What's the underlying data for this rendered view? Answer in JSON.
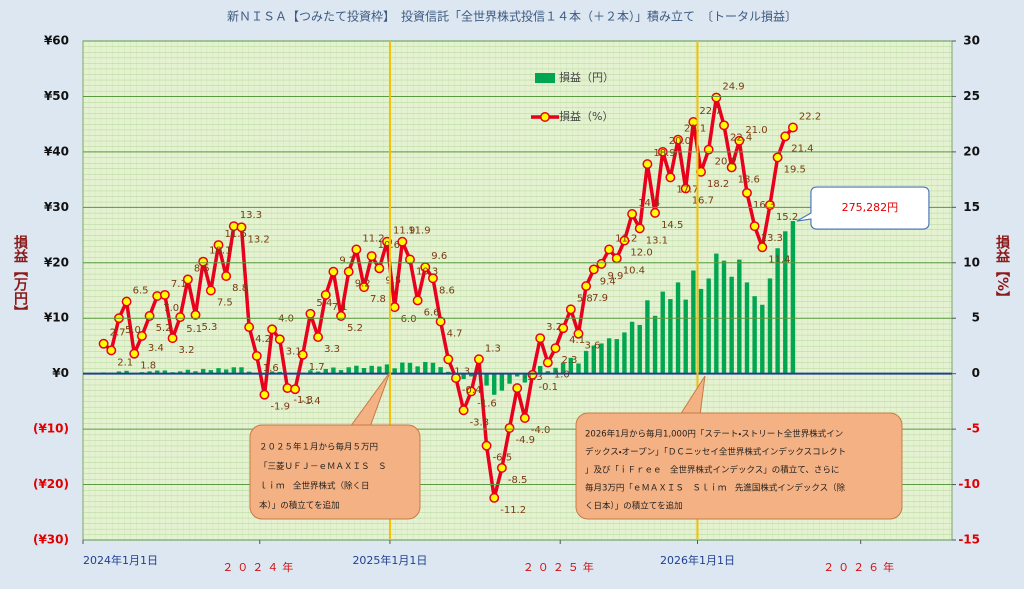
{
  "chart_data": {
    "type": "combo",
    "title": "新ＮＩＳＡ【つみたて投資枠】　投資信託「全世界株式投信１４本（＋２本）」積み立て　〔トータル損益〕",
    "y_label": "損益【万円】",
    "y2_label": "損益【%】",
    "grid": true,
    "x": [
      3.5,
      4.8,
      6.1,
      7.4,
      8.7,
      10.0,
      11.3,
      12.6,
      13.9,
      15.2,
      16.5,
      17.8,
      19.1,
      20.4,
      21.7,
      23.0,
      24.3,
      25.6,
      26.9,
      28.2,
      29.5,
      30.8,
      32.1,
      33.4,
      34.7,
      36.0,
      37.3,
      38.6,
      39.9,
      41.2,
      42.5,
      43.8,
      45.1,
      46.4,
      47.7,
      49.0,
      50.3,
      51.6,
      52.9,
      54.2,
      55.5,
      56.8,
      58.1,
      59.4,
      60.7,
      62.0,
      63.3,
      64.6,
      65.9,
      67.2,
      68.5,
      69.8,
      71.1,
      72.4,
      73.7,
      75.0,
      76.3,
      77.6,
      78.9,
      80.2,
      81.5,
      82.8,
      84.1,
      85.4,
      86.7,
      88.0,
      89.3,
      90.6,
      91.9,
      93.2,
      94.5,
      95.8,
      97.1,
      98.4,
      99.7,
      101.0,
      102.3,
      103.6,
      104.9,
      106.2,
      107.5,
      108.8,
      110.1,
      111.4,
      112.7,
      114.0,
      115.3,
      116.6,
      117.9,
      119.2,
      120.5
    ],
    "xlim": [
      0,
      147.5
    ],
    "xticks": [
      {
        "value": 0,
        "label": "2024年1月1日"
      },
      {
        "value": 30,
        "label": "２０２４年"
      },
      {
        "value": 52.1,
        "label": "2025年1月1日"
      },
      {
        "value": 81,
        "label": "２０２５年"
      },
      {
        "value": 104.3,
        "label": "2026年1月1日"
      },
      {
        "value": 132,
        "label": "２０２６年"
      }
    ],
    "vlines": [
      52.1,
      104.3
    ],
    "vline_color": "#f5c000",
    "ylim": [
      -30,
      60
    ],
    "yticks": [
      {
        "value": 60,
        "label": "¥60"
      },
      {
        "value": 50,
        "label": "¥50"
      },
      {
        "value": 40,
        "label": "¥40"
      },
      {
        "value": 30,
        "label": "¥30"
      },
      {
        "value": 20,
        "label": "¥20"
      },
      {
        "value": 10,
        "label": "¥10"
      },
      {
        "value": 0,
        "label": "¥0"
      },
      {
        "value": -10,
        "label": "(¥10)"
      },
      {
        "value": -20,
        "label": "(¥20)"
      },
      {
        "value": -30,
        "label": "(¥30)"
      }
    ],
    "y2lim": [
      -15,
      30
    ],
    "y2ticks": [
      30,
      25,
      20,
      15,
      10,
      5,
      0,
      -5,
      -10,
      -15
    ],
    "series": [
      {
        "name": "損益（円）",
        "type": "bar",
        "color": "#00a651",
        "values": [
          0.22,
          0.17,
          0.4,
          0.52,
          0.14,
          0.27,
          0.42,
          0.57,
          0.58,
          0.26,
          0.42,
          0.71,
          0.44,
          0.85,
          0.64,
          0.99,
          0.76,
          1.15,
          1.15,
          0.37,
          0.14,
          -0.19,
          0.41,
          0.32,
          -0.14,
          -0.15,
          0.19,
          0.61,
          0.38,
          0.84,
          1.11,
          0.64,
          1.15,
          1.43,
          1.02,
          1.41,
          1.29,
          1.67,
          0.96,
          2.02,
          1.96,
          1.32,
          2.11,
          1.98,
          1.18,
          0.34,
          -0.11,
          -0.96,
          -0.5,
          0.42,
          -2.15,
          -3.81,
          -3.06,
          -1.81,
          -0.51,
          -1.6,
          -0.04,
          1.38,
          0.45,
          1.06,
          1.97,
          2.84,
          1.84,
          4.11,
          5.08,
          5.45,
          6.38,
          6.24,
          7.44,
          9.36,
          8.78,
          13.23,
          10.44,
          14.8,
          13.45,
          16.46,
          13.36,
          18.61,
          15.29,
          17.17,
          21.66,
          20.38,
          17.48,
          20.58,
          16.46,
          13.97,
          12.43,
          17.18,
          22.62,
          25.68,
          27.5282
        ],
        "value_labels": [
          null,
          null,
          null,
          null,
          null,
          null,
          null,
          null,
          null,
          null,
          null,
          null,
          null,
          null,
          null,
          null,
          null,
          null,
          null,
          null,
          null,
          null,
          null,
          null,
          null,
          null,
          null,
          null,
          null,
          null,
          null,
          null,
          null,
          null,
          null,
          null,
          null,
          null,
          null,
          null,
          null,
          null,
          null,
          null,
          null,
          null,
          null,
          null,
          null,
          null,
          null,
          null,
          null,
          null,
          null,
          null,
          null,
          null,
          null,
          null,
          null,
          null,
          null,
          null,
          null,
          null,
          null,
          null,
          null,
          null,
          null,
          null,
          null,
          null,
          null,
          null,
          null,
          null,
          null,
          null,
          null,
          null,
          null,
          null,
          null,
          null,
          null,
          null,
          null,
          null,
          "275,282円"
        ]
      },
      {
        "name": "損益（%）",
        "type": "line",
        "axis": "y2",
        "color": "#e8001c",
        "marker_color": "#ffff00",
        "values": [
          2.7,
          2.1,
          5.0,
          6.5,
          1.8,
          3.4,
          5.2,
          7.0,
          7.1,
          3.2,
          5.1,
          8.5,
          5.3,
          10.1,
          7.5,
          11.6,
          8.8,
          13.3,
          13.2,
          4.2,
          1.6,
          -1.9,
          4.0,
          3.1,
          -1.3,
          -1.4,
          1.7,
          5.4,
          3.3,
          7.1,
          9.2,
          5.2,
          9.2,
          11.2,
          7.8,
          10.6,
          9.5,
          11.9,
          6.0,
          11.9,
          10.3,
          6.6,
          9.6,
          8.6,
          4.7,
          1.3,
          -0.4,
          -3.3,
          -1.6,
          1.3,
          -6.5,
          -11.2,
          -8.5,
          -4.9,
          -1.3,
          -4.0,
          -0.1,
          3.2,
          1.0,
          2.3,
          4.1,
          5.8,
          3.6,
          7.9,
          9.4,
          9.9,
          11.2,
          10.4,
          12.0,
          14.4,
          13.1,
          18.9,
          14.5,
          20.0,
          17.7,
          21.1,
          16.7,
          22.7,
          18.2,
          20.2,
          24.9,
          22.4,
          18.6,
          21.0,
          16.3,
          13.3,
          11.4,
          15.2,
          19.5,
          21.4,
          22.2
        ],
        "value_labels": [
          "2.7",
          "2.1",
          "5.0",
          "6.5",
          "1.8",
          "3.4",
          "5.2",
          "7.0",
          "7.1",
          "3.2",
          "5.1",
          "8.5",
          "5.3",
          "10.1",
          "7.5",
          "11.6",
          "8.8",
          "13.3",
          "13.2",
          "4.2",
          "1.6",
          "-1.9",
          "4.0",
          "3.1",
          "-1.3",
          "-1.4",
          "1.7",
          "5.4",
          "3.3",
          "7.1",
          "9.2",
          "5.2",
          "9.2",
          "11.2",
          "7.8",
          "10.6",
          "9.5",
          "11.9",
          "6.0",
          "11.9",
          "10.3",
          "6.6",
          "9.6",
          "8.6",
          "4.7",
          "1.3",
          "-0.4",
          "-3.3",
          "-1.6",
          "1.3",
          "-6.5",
          "-11.2",
          "-8.5",
          "-4.9",
          "-1.3",
          "-4.0",
          "-0.1",
          "3.2",
          "1.0",
          "2.3",
          "4.1",
          "5.8",
          "3.6",
          "7.9",
          "9.4",
          "9.9",
          "11.2",
          "10.4",
          "12.0",
          "14.4",
          "13.1",
          "18.9",
          "14.5",
          "20.0",
          "17.7",
          "21.1",
          "16.7",
          "22.7",
          "18.2",
          "20.2",
          "24.9",
          "22.4",
          "18.6",
          "21.0",
          "16.3",
          "13.3",
          "11.4",
          "15.2",
          "19.5",
          "21.4",
          "22.2"
        ]
      }
    ],
    "annotations": [
      {
        "lines": [
          "２０２５年１月から毎月５万円",
          "「三菱ＵＦＪ－ｅＭＡＸＩＳ　Ｓ",
          "ｌｉｍ　全世界株式（除く日",
          "本）」の積立てを追加"
        ]
      },
      {
        "lines": [
          "2026年1月から毎月1,000円「ステート・ストリート全世界株式イン",
          "デックス・オープン」「ＤＣニッセイ全世界株式インデックスコレクト",
          "」及び「ｉＦｒｅｅ　全世界株式インデックス」の積立て、さらに",
          "毎月3万円「ｅＭＡＸＩＳ　Ｓｌｉｍ　先進国株式インデックス（除",
          "く日本）」の積立てを追加"
        ]
      }
    ]
  }
}
